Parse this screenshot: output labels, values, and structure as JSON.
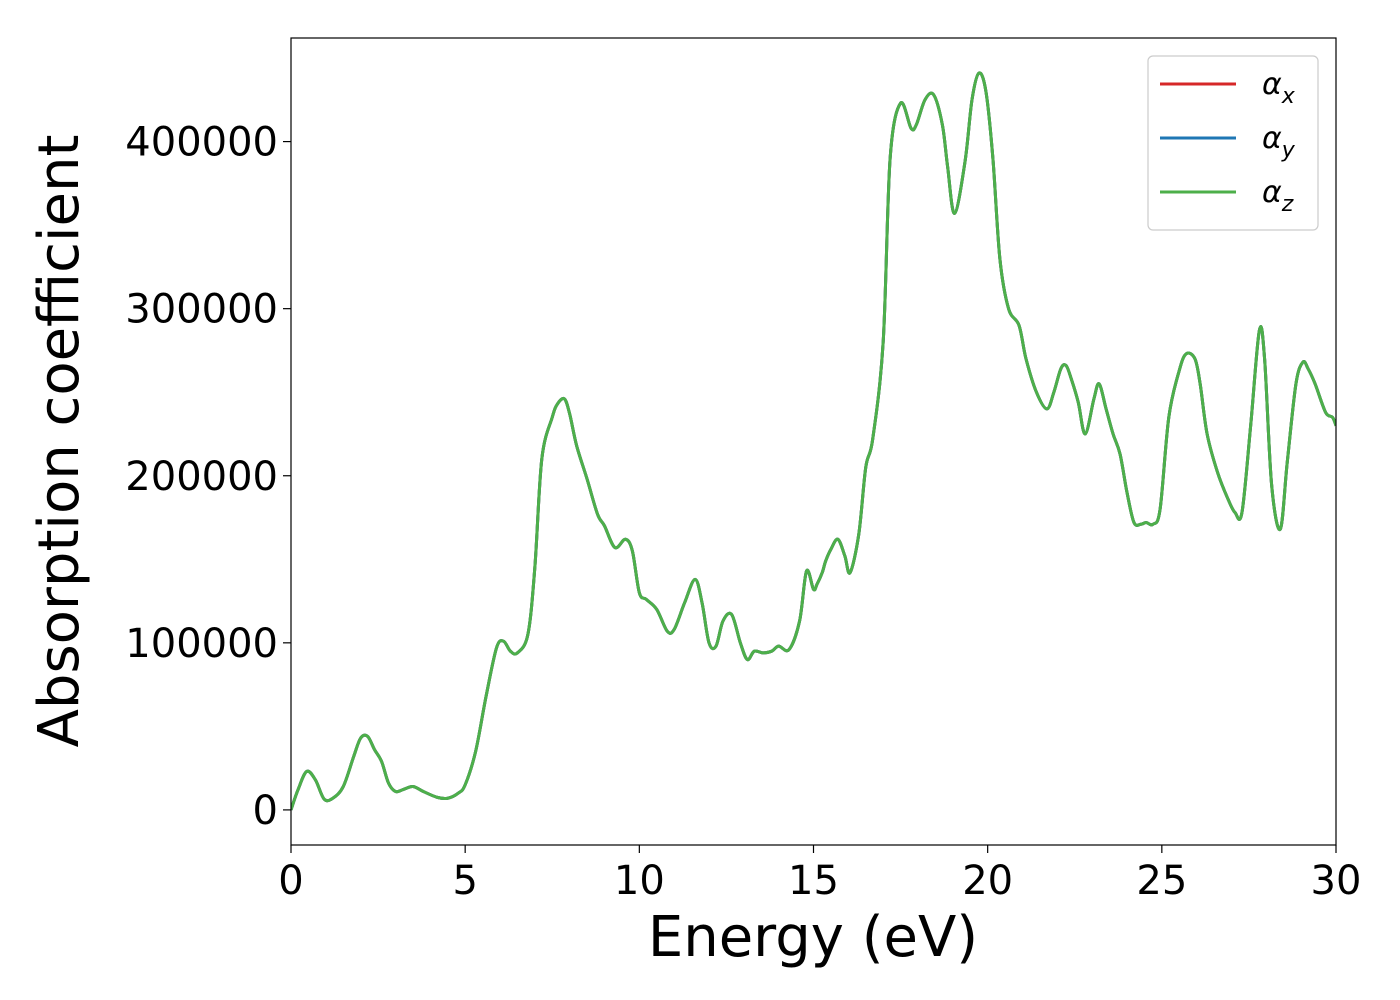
{
  "chart_data": {
    "type": "line",
    "title": "",
    "xlabel": "Energy (eV)",
    "ylabel": "Absorption coefficient",
    "xlim": [
      0,
      30
    ],
    "ylim": [
      -21000,
      462000
    ],
    "xticks": [
      "0",
      "5",
      "10",
      "15",
      "20",
      "25",
      "30"
    ],
    "yticks": [
      "0",
      "100000",
      "200000",
      "300000",
      "400000"
    ],
    "grid": false,
    "legend_position": "top-right",
    "series": [
      {
        "name": "αx",
        "label_base": "α",
        "label_sub": "x",
        "color": "#d62728"
      },
      {
        "name": "αy",
        "label_base": "α",
        "label_sub": "y",
        "color": "#1f77b4"
      },
      {
        "name": "αz",
        "label_base": "α",
        "label_sub": "z",
        "color": "#4daf4a"
      }
    ],
    "x": [
      0,
      0.2,
      0.45,
      0.7,
      0.95,
      1.2,
      1.5,
      1.8,
      2.0,
      2.2,
      2.4,
      2.6,
      2.8,
      3.0,
      3.2,
      3.5,
      3.8,
      4.2,
      4.5,
      4.8,
      5.0,
      5.3,
      5.6,
      5.9,
      6.1,
      6.3,
      6.5,
      6.8,
      7.0,
      7.2,
      7.5,
      7.65,
      7.85,
      8.0,
      8.2,
      8.5,
      8.8,
      9.0,
      9.3,
      9.6,
      9.8,
      10.0,
      10.2,
      10.5,
      10.8,
      11.0,
      11.3,
      11.6,
      11.8,
      12.0,
      12.2,
      12.4,
      12.65,
      12.9,
      13.1,
      13.3,
      13.55,
      13.8,
      14.0,
      14.3,
      14.6,
      14.8,
      15.0,
      15.1,
      15.25,
      15.35,
      15.5,
      15.7,
      15.9,
      16.05,
      16.3,
      16.5,
      16.7,
      17.0,
      17.2,
      17.5,
      17.8,
      17.95,
      18.2,
      18.45,
      18.7,
      18.85,
      19.05,
      19.35,
      19.55,
      19.75,
      19.95,
      20.15,
      20.35,
      20.6,
      20.9,
      21.1,
      21.4,
      21.7,
      21.9,
      22.1,
      22.25,
      22.4,
      22.6,
      22.8,
      23.05,
      23.2,
      23.4,
      23.6,
      23.8,
      24.0,
      24.2,
      24.4,
      24.55,
      24.75,
      24.95,
      25.2,
      25.5,
      25.7,
      25.95,
      26.1,
      26.3,
      26.6,
      26.9,
      27.1,
      27.3,
      27.55,
      27.8,
      27.95,
      28.15,
      28.4,
      28.6,
      28.85,
      29.05,
      29.2,
      29.4,
      29.7,
      29.9,
      30.0
    ],
    "y": [
      0,
      12000,
      23000,
      18000,
      6500,
      7000,
      14000,
      32000,
      43000,
      44000,
      36000,
      29000,
      16000,
      11000,
      12000,
      14000,
      11000,
      7500,
      7000,
      10000,
      15000,
      35000,
      68000,
      97000,
      101000,
      95000,
      94000,
      105000,
      145000,
      210000,
      235000,
      243000,
      246000,
      237000,
      218000,
      198000,
      177000,
      170000,
      157000,
      162000,
      155000,
      130000,
      126000,
      120000,
      107000,
      108000,
      124000,
      138000,
      124000,
      100000,
      98000,
      113000,
      117000,
      100000,
      90000,
      95000,
      94000,
      95000,
      98000,
      96000,
      113000,
      143000,
      132000,
      135000,
      142000,
      149000,
      156000,
      162000,
      152000,
      142000,
      165000,
      205000,
      222000,
      280000,
      390000,
      423000,
      408000,
      410000,
      425000,
      428000,
      410000,
      385000,
      357000,
      388000,
      425000,
      441000,
      430000,
      390000,
      330000,
      300000,
      290000,
      270000,
      250000,
      240000,
      250000,
      264000,
      266000,
      258000,
      244000,
      225000,
      246000,
      255000,
      240000,
      225000,
      213000,
      190000,
      172000,
      171000,
      172000,
      171000,
      180000,
      235000,
      263000,
      273000,
      270000,
      255000,
      225000,
      202000,
      186000,
      178000,
      178000,
      230000,
      287000,
      270000,
      195000,
      168000,
      208000,
      255000,
      268000,
      264000,
      255000,
      238000,
      235000,
      230000
    ]
  }
}
